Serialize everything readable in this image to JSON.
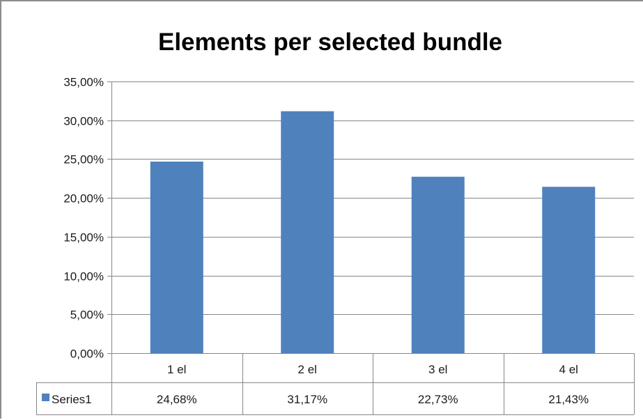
{
  "chart_data": {
    "type": "bar",
    "title": "Elements per selected bundle",
    "categories": [
      "1 el",
      "2 el",
      "3 el",
      "4 el"
    ],
    "series": [
      {
        "name": "Series1",
        "color": "#4f81bd",
        "values": [
          24.68,
          31.17,
          22.73,
          21.43
        ],
        "labels": [
          "24,68%",
          "31,17%",
          "22,73%",
          "21,43%"
        ]
      }
    ],
    "ylim": [
      0,
      35
    ],
    "y_ticks": [
      0,
      5,
      10,
      15,
      20,
      25,
      30,
      35
    ],
    "y_tick_labels": [
      "0,00%",
      "5,00%",
      "10,00%",
      "15,00%",
      "20,00%",
      "25,00%",
      "30,00%",
      "35,00%"
    ],
    "grid": true,
    "legend": "data-table-left",
    "data_table": true
  }
}
